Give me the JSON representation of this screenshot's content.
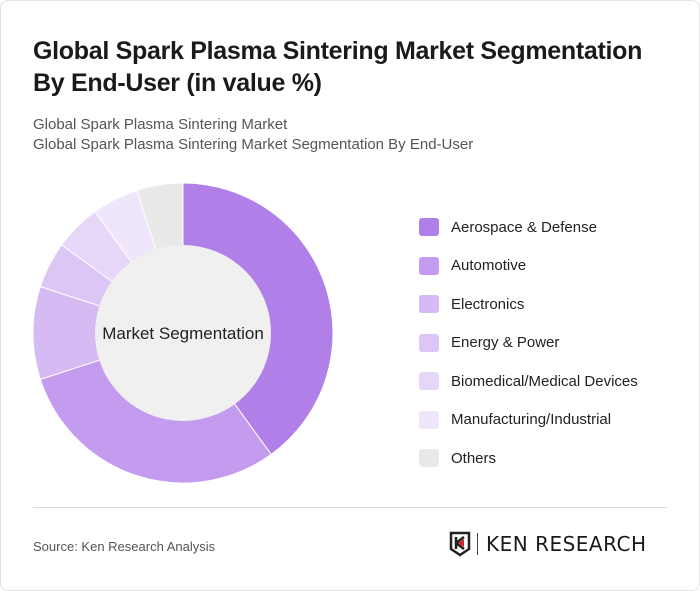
{
  "title": "Global Spark Plasma Sintering Market Segmentation By End-User (in value %)",
  "subtitle1": "Global Spark Plasma Sintering Market",
  "subtitle2": "Global Spark Plasma Sintering Market Segmentation By End-User",
  "source": "Source: Ken Research Analysis",
  "logo_text": "KEN RESEARCH",
  "chart_data": {
    "type": "pie",
    "variant": "donut",
    "center_label": "Market Segmentation",
    "legend_position": "right",
    "categories": [
      "Aerospace & Defense",
      "Automotive",
      "Electronics",
      "Energy & Power",
      "Biomedical/Medical Devices",
      "Manufacturing/Industrial",
      "Others"
    ],
    "values": [
      40,
      30,
      10,
      5,
      5,
      5,
      5
    ],
    "colors": [
      "#b07fe8",
      "#c49cef",
      "#d5baf4",
      "#dcc6f5",
      "#e6d6f8",
      "#efe6fb",
      "#e9e9e9"
    ]
  }
}
